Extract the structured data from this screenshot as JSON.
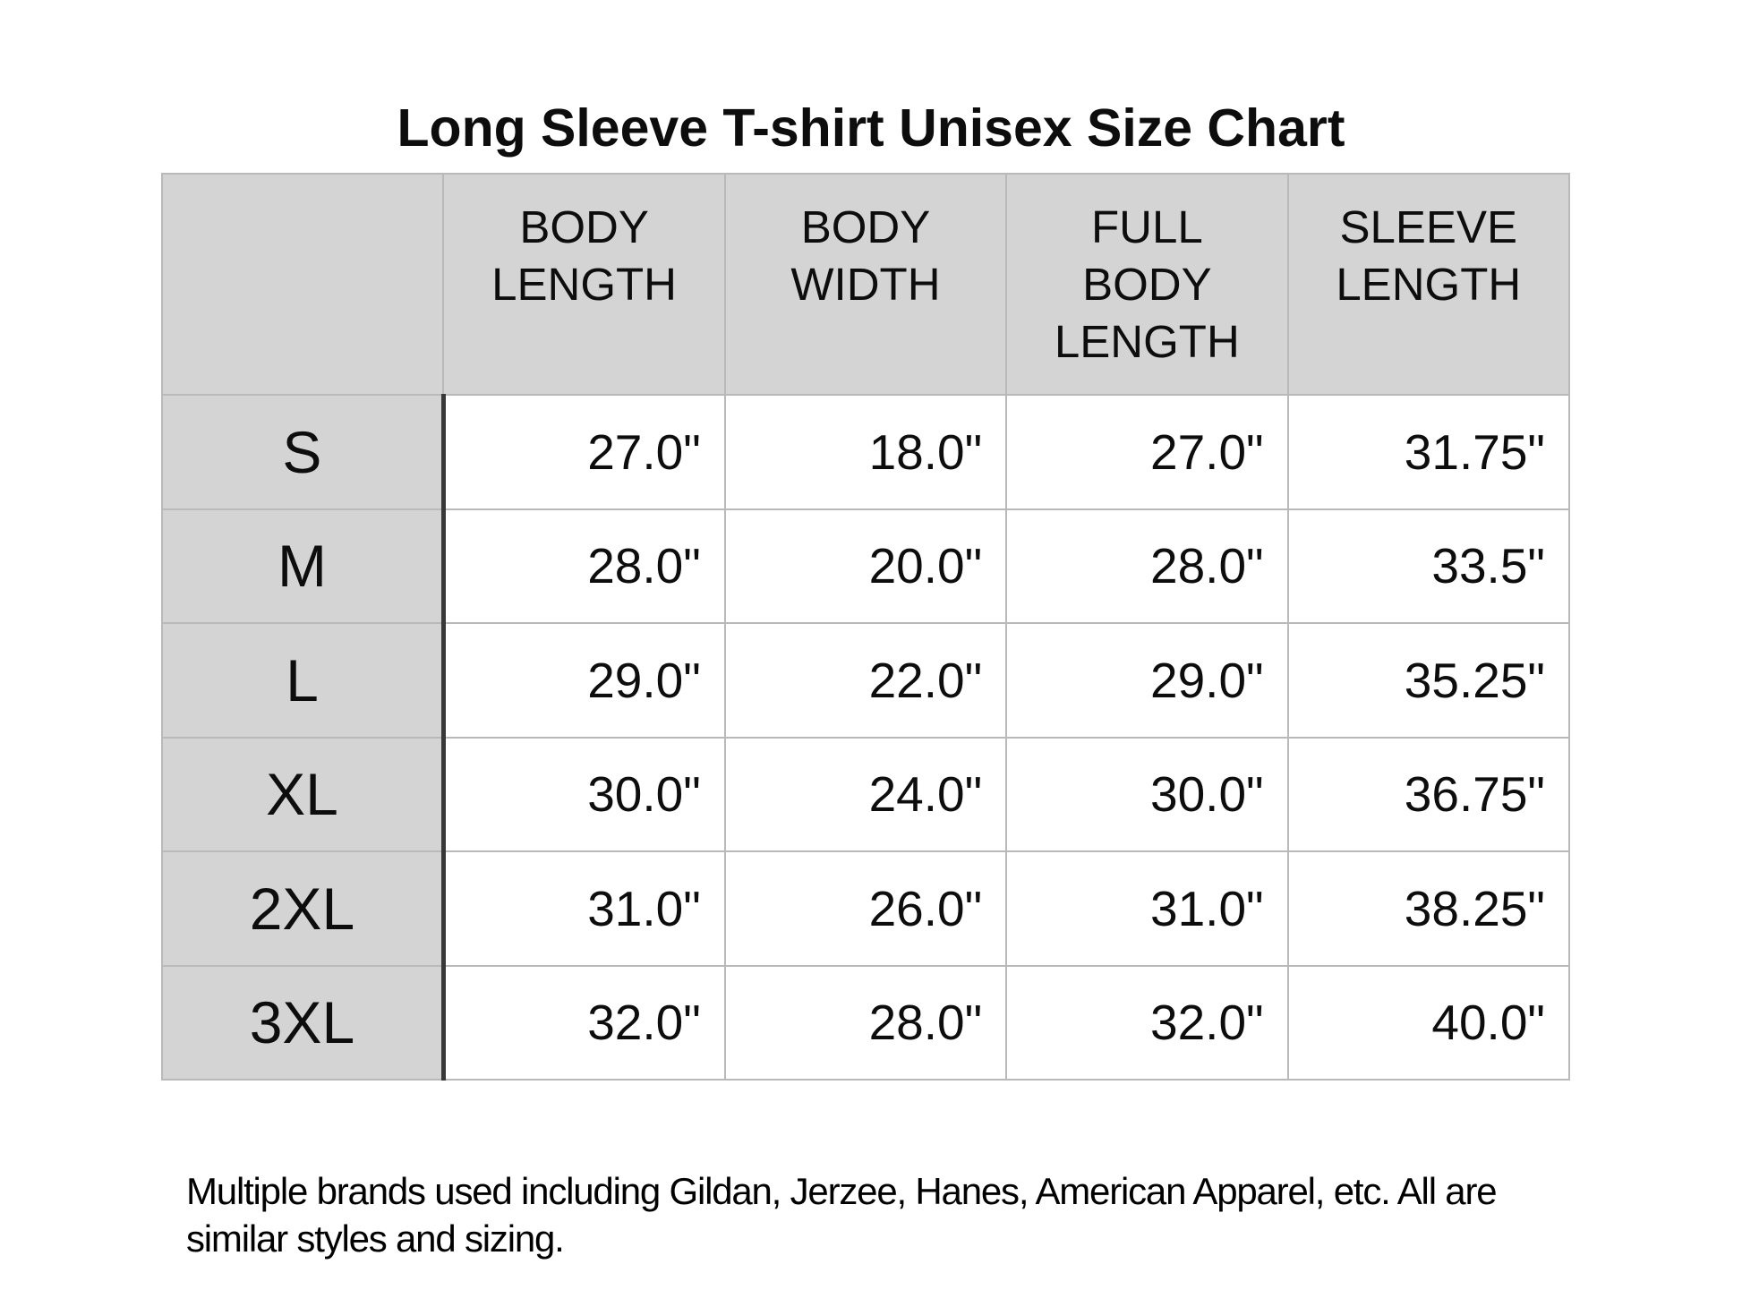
{
  "title": "Long Sleeve T-shirt Unisex Size Chart",
  "table": {
    "headers": {
      "corner": "",
      "body_length": [
        "BODY",
        "LENGTH"
      ],
      "body_width": [
        "BODY",
        "WIDTH"
      ],
      "full_body_length": [
        "FULL",
        "BODY",
        "LENGTH"
      ],
      "sleeve_length": [
        "SLEEVE",
        "LENGTH"
      ]
    },
    "rows": [
      {
        "size": "S",
        "body_length": "27.0\"",
        "body_width": "18.0\"",
        "full_body_length": "27.0\"",
        "sleeve_length": "31.75\""
      },
      {
        "size": "M",
        "body_length": "28.0\"",
        "body_width": "20.0\"",
        "full_body_length": "28.0\"",
        "sleeve_length": "33.5\""
      },
      {
        "size": "L",
        "body_length": "29.0\"",
        "body_width": "22.0\"",
        "full_body_length": "29.0\"",
        "sleeve_length": "35.25\""
      },
      {
        "size": "XL",
        "body_length": "30.0\"",
        "body_width": "24.0\"",
        "full_body_length": "30.0\"",
        "sleeve_length": "36.75\""
      },
      {
        "size": "2XL",
        "body_length": "31.0\"",
        "body_width": "26.0\"",
        "full_body_length": "31.0\"",
        "sleeve_length": "38.25\""
      },
      {
        "size": "3XL",
        "body_length": "32.0\"",
        "body_width": "28.0\"",
        "full_body_length": "32.0\"",
        "sleeve_length": "40.0\""
      }
    ]
  },
  "footer": {
    "line1": "Multiple brands used including Gildan, Jerzee, Hanes, American Apparel, etc. All are",
    "line2": "similar styles and sizing."
  },
  "colors": {
    "header_fill": "#d4d4d4",
    "row_label_fill": "#d4d4d4",
    "heavy_border": "#383838",
    "light_border": "#b9b9b9",
    "text": "#0d0d0d"
  }
}
